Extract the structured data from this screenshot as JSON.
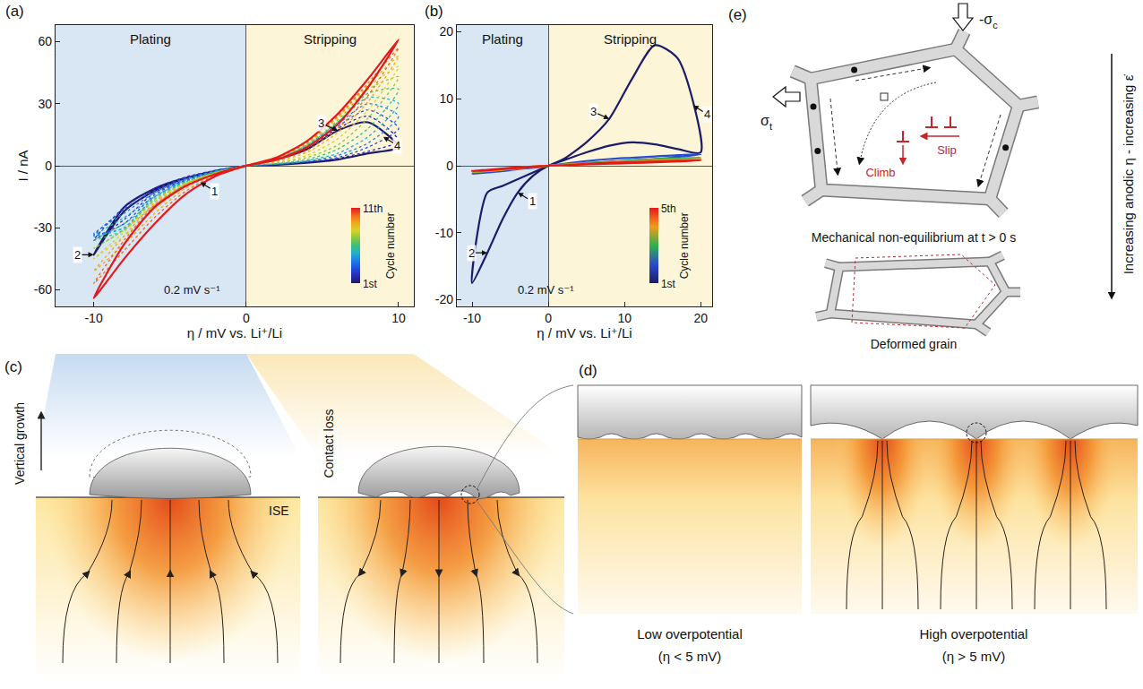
{
  "chart_data": [
    {
      "panel_label": "(a)",
      "type": "line",
      "xlabel": "η / mV vs. Li⁺/Li",
      "ylabel": "I / nA",
      "xlim": [
        -12.5,
        11
      ],
      "xticks": [
        -10,
        0,
        10
      ],
      "ylim": [
        -68,
        68
      ],
      "yticks": [
        -60,
        -30,
        0,
        30,
        60
      ],
      "x": [
        0,
        -2,
        -4,
        -6,
        -8,
        -10,
        -8,
        -6,
        -4,
        -2,
        0,
        2,
        4,
        6,
        8,
        10,
        8,
        6,
        4,
        2,
        0
      ],
      "series": [
        {
          "color": "#1c1c6b",
          "line_style": "solid",
          "values": [
            0,
            -3,
            -6,
            -11,
            -20,
            -43,
            -22,
            -12,
            -6,
            -2.5,
            0,
            3,
            8,
            17,
            21,
            9,
            6,
            3,
            1.5,
            0.5,
            0
          ]
        },
        {
          "color": "#2a2ab8",
          "line_style": "dot",
          "values": [
            0,
            -3,
            -7,
            -13,
            -26,
            -36,
            -20,
            -11,
            -5.5,
            -2.2,
            0,
            3,
            9,
            18,
            24,
            12,
            7,
            3.5,
            1.8,
            0.6,
            0
          ]
        },
        {
          "color": "#1f4fe0",
          "line_style": "dot",
          "values": [
            0,
            -3,
            -7,
            -14,
            -28,
            -34,
            -21,
            -12,
            -6,
            -2.4,
            0,
            3,
            9,
            19,
            27,
            18,
            9,
            4,
            2,
            0.7,
            0
          ]
        },
        {
          "color": "#1e7fe8",
          "line_style": "dot",
          "values": [
            0,
            -3,
            -7.5,
            -15,
            -30,
            -33,
            -23,
            -13,
            -6.5,
            -2.6,
            0,
            3,
            9.5,
            20,
            30,
            24,
            11,
            5,
            2.2,
            0.8,
            0
          ]
        },
        {
          "color": "#22b0c8",
          "line_style": "dot",
          "values": [
            0,
            -3.2,
            -8,
            -15,
            -30,
            -34,
            -25,
            -15,
            -7,
            -2.8,
            0,
            3.2,
            10,
            21,
            33,
            30,
            14,
            6,
            2.5,
            0.9,
            0
          ]
        },
        {
          "color": "#3cbf7a",
          "line_style": "dot",
          "values": [
            0,
            -3.3,
            -8,
            -16,
            -31,
            -36,
            -28,
            -17,
            -8,
            -3,
            0,
            3.3,
            10,
            21,
            35,
            37,
            18,
            8,
            3,
            1,
            0
          ]
        },
        {
          "color": "#8cc63f",
          "line_style": "dot",
          "values": [
            0,
            -3.4,
            -8.5,
            -16,
            -31,
            -40,
            -31,
            -19,
            -9,
            -3.3,
            0,
            3.4,
            10.5,
            22,
            37,
            43,
            23,
            10,
            4,
            1.3,
            0
          ]
        },
        {
          "color": "#d6d42a",
          "line_style": "dot",
          "values": [
            0,
            -3.5,
            -8.5,
            -17,
            -32,
            -45,
            -34,
            -21,
            -10,
            -3.6,
            0,
            3.5,
            11,
            23,
            38,
            48,
            27,
            13,
            5,
            1.7,
            0
          ]
        },
        {
          "color": "#f2a81d",
          "line_style": "dot",
          "values": [
            0,
            -3.6,
            -9,
            -18,
            -34,
            -51,
            -38,
            -23,
            -11,
            -4,
            0,
            3.6,
            11,
            23.5,
            39,
            53,
            31,
            16,
            6.5,
            2.2,
            0
          ]
        },
        {
          "color": "#f06a1c",
          "line_style": "dot",
          "values": [
            0,
            -3.8,
            -9.5,
            -19,
            -36,
            -57,
            -41,
            -25,
            -12.5,
            -4.5,
            0,
            3.8,
            11.5,
            24,
            40,
            57,
            34,
            18,
            7.5,
            2.6,
            0
          ]
        },
        {
          "color": "#e31a1c",
          "line_style": "solid",
          "values": [
            0,
            -4,
            -10,
            -20,
            -38,
            -64,
            -45,
            -28,
            -14,
            -5,
            0,
            4,
            12,
            25,
            42,
            61,
            38,
            20,
            9,
            3,
            0
          ]
        }
      ],
      "regions": [
        {
          "text": "Plating",
          "from": -12.5,
          "to": 0,
          "color": "#d9e6f3"
        },
        {
          "text": "Stripping",
          "from": 0,
          "to": 11,
          "color": "#fdf5d8"
        }
      ],
      "annotations": [
        {
          "text": "1",
          "x": -3,
          "y": -8
        },
        {
          "text": "2",
          "x": -10,
          "y": -43
        },
        {
          "text": "3",
          "x": 6,
          "y": 17
        },
        {
          "text": "4",
          "x": 9,
          "y": 14
        }
      ],
      "note": "0.2 mV s⁻¹",
      "colorbar": {
        "title": "Cycle number",
        "range": [
          1,
          11
        ],
        "ticks": [
          {
            "value": 1,
            "label": "1st"
          },
          {
            "value": 11,
            "label": "11th"
          }
        ]
      }
    },
    {
      "panel_label": "(b)",
      "type": "line",
      "xlabel": "η / mV vs. Li⁺/Li",
      "xlim": [
        -12,
        21.5
      ],
      "xticks": [
        -10,
        0,
        10,
        20
      ],
      "ylim": [
        -21,
        21
      ],
      "yticks": [
        -20,
        -10,
        0,
        10,
        20
      ],
      "x": [
        0,
        -2,
        -4,
        -6,
        -8,
        -10,
        -8,
        -6,
        -4,
        -2,
        0,
        2,
        5,
        8,
        11,
        14,
        17,
        20,
        17,
        14,
        11,
        8,
        5,
        2,
        0
      ],
      "series": [
        {
          "color": "#1c1c6b",
          "line_style": "solid",
          "values": [
            0,
            -1.5,
            -4,
            -8,
            -13,
            -17.5,
            -4,
            -3,
            -2,
            -1,
            0,
            1,
            3.5,
            7,
            13,
            18,
            16,
            2,
            2.5,
            3.2,
            3.5,
            3,
            2,
            0.8,
            0
          ]
        },
        {
          "color": "#2a4ad0",
          "line_style": "solid",
          "values": [
            0,
            -0.3,
            -0.5,
            -0.8,
            -1,
            -1.2,
            -0.9,
            -0.6,
            -0.4,
            -0.2,
            0,
            0.3,
            0.7,
            1,
            1.2,
            1.4,
            1.6,
            1.7,
            1.3,
            1,
            0.8,
            0.6,
            0.4,
            0.2,
            0
          ]
        },
        {
          "color": "#2fb24a",
          "line_style": "solid",
          "values": [
            0,
            -0.2,
            -0.4,
            -0.6,
            -0.8,
            -1,
            -0.8,
            -0.5,
            -0.3,
            -0.15,
            0,
            0.2,
            0.4,
            0.6,
            0.8,
            1,
            1.1,
            1.2,
            0.9,
            0.7,
            0.5,
            0.4,
            0.3,
            0.1,
            0
          ]
        },
        {
          "color": "#f59a1b",
          "line_style": "solid",
          "values": [
            0,
            -0.2,
            -0.4,
            -0.6,
            -0.8,
            -0.9,
            -0.7,
            -0.5,
            -0.3,
            -0.1,
            0,
            0.15,
            0.35,
            0.5,
            0.65,
            0.8,
            0.9,
            1,
            0.8,
            0.6,
            0.45,
            0.35,
            0.25,
            0.1,
            0
          ]
        },
        {
          "color": "#e31a1c",
          "line_style": "solid",
          "values": [
            0,
            -0.2,
            -0.35,
            -0.5,
            -0.7,
            -0.8,
            -0.6,
            -0.4,
            -0.25,
            -0.1,
            0,
            0.1,
            0.3,
            0.45,
            0.55,
            0.65,
            0.75,
            0.8,
            0.65,
            0.5,
            0.4,
            0.3,
            0.2,
            0.1,
            0
          ]
        }
      ],
      "regions": [
        {
          "text": "Plating",
          "from": -12,
          "to": 0,
          "color": "#d9e6f3"
        },
        {
          "text": "Stripping",
          "from": 0,
          "to": 21.5,
          "color": "#fdf5d8"
        }
      ],
      "annotations": [
        {
          "text": "1",
          "x": -4,
          "y": -4
        },
        {
          "text": "2",
          "x": -8,
          "y": -13
        },
        {
          "text": "3",
          "x": 8,
          "y": 7
        },
        {
          "text": "4",
          "x": 19,
          "y": 9
        }
      ],
      "note": "0.2 mV s⁻¹",
      "colorbar": {
        "title": "Cycle number",
        "range": [
          1,
          5
        ],
        "ticks": [
          {
            "value": 1,
            "label": "1st"
          },
          {
            "value": 5,
            "label": "5th"
          }
        ]
      }
    }
  ],
  "diagram": {
    "c": {
      "label": "(c)",
      "vertical_growth": "Vertical growth",
      "ise": "ISE",
      "contact_loss": "Contact loss"
    },
    "d": {
      "label": "(d)",
      "panels": [
        {
          "title": "Low overpotential",
          "condition": "(η < 5 mV)"
        },
        {
          "title": "High overpotential",
          "condition": "(η > 5 mV)"
        }
      ]
    },
    "e": {
      "label": "(e)",
      "compressive_stress": {
        "text": "-σ",
        "subscript": "c"
      },
      "tensile_stress": {
        "text": "σ",
        "subscript": "t"
      },
      "climb": "Climb",
      "slip": "Slip",
      "caption_top": "Mechanical non-equilibrium at t > 0 s",
      "caption_bottom": "Deformed grain",
      "trend": "Increasing anodic η - increasing ε̇"
    }
  }
}
